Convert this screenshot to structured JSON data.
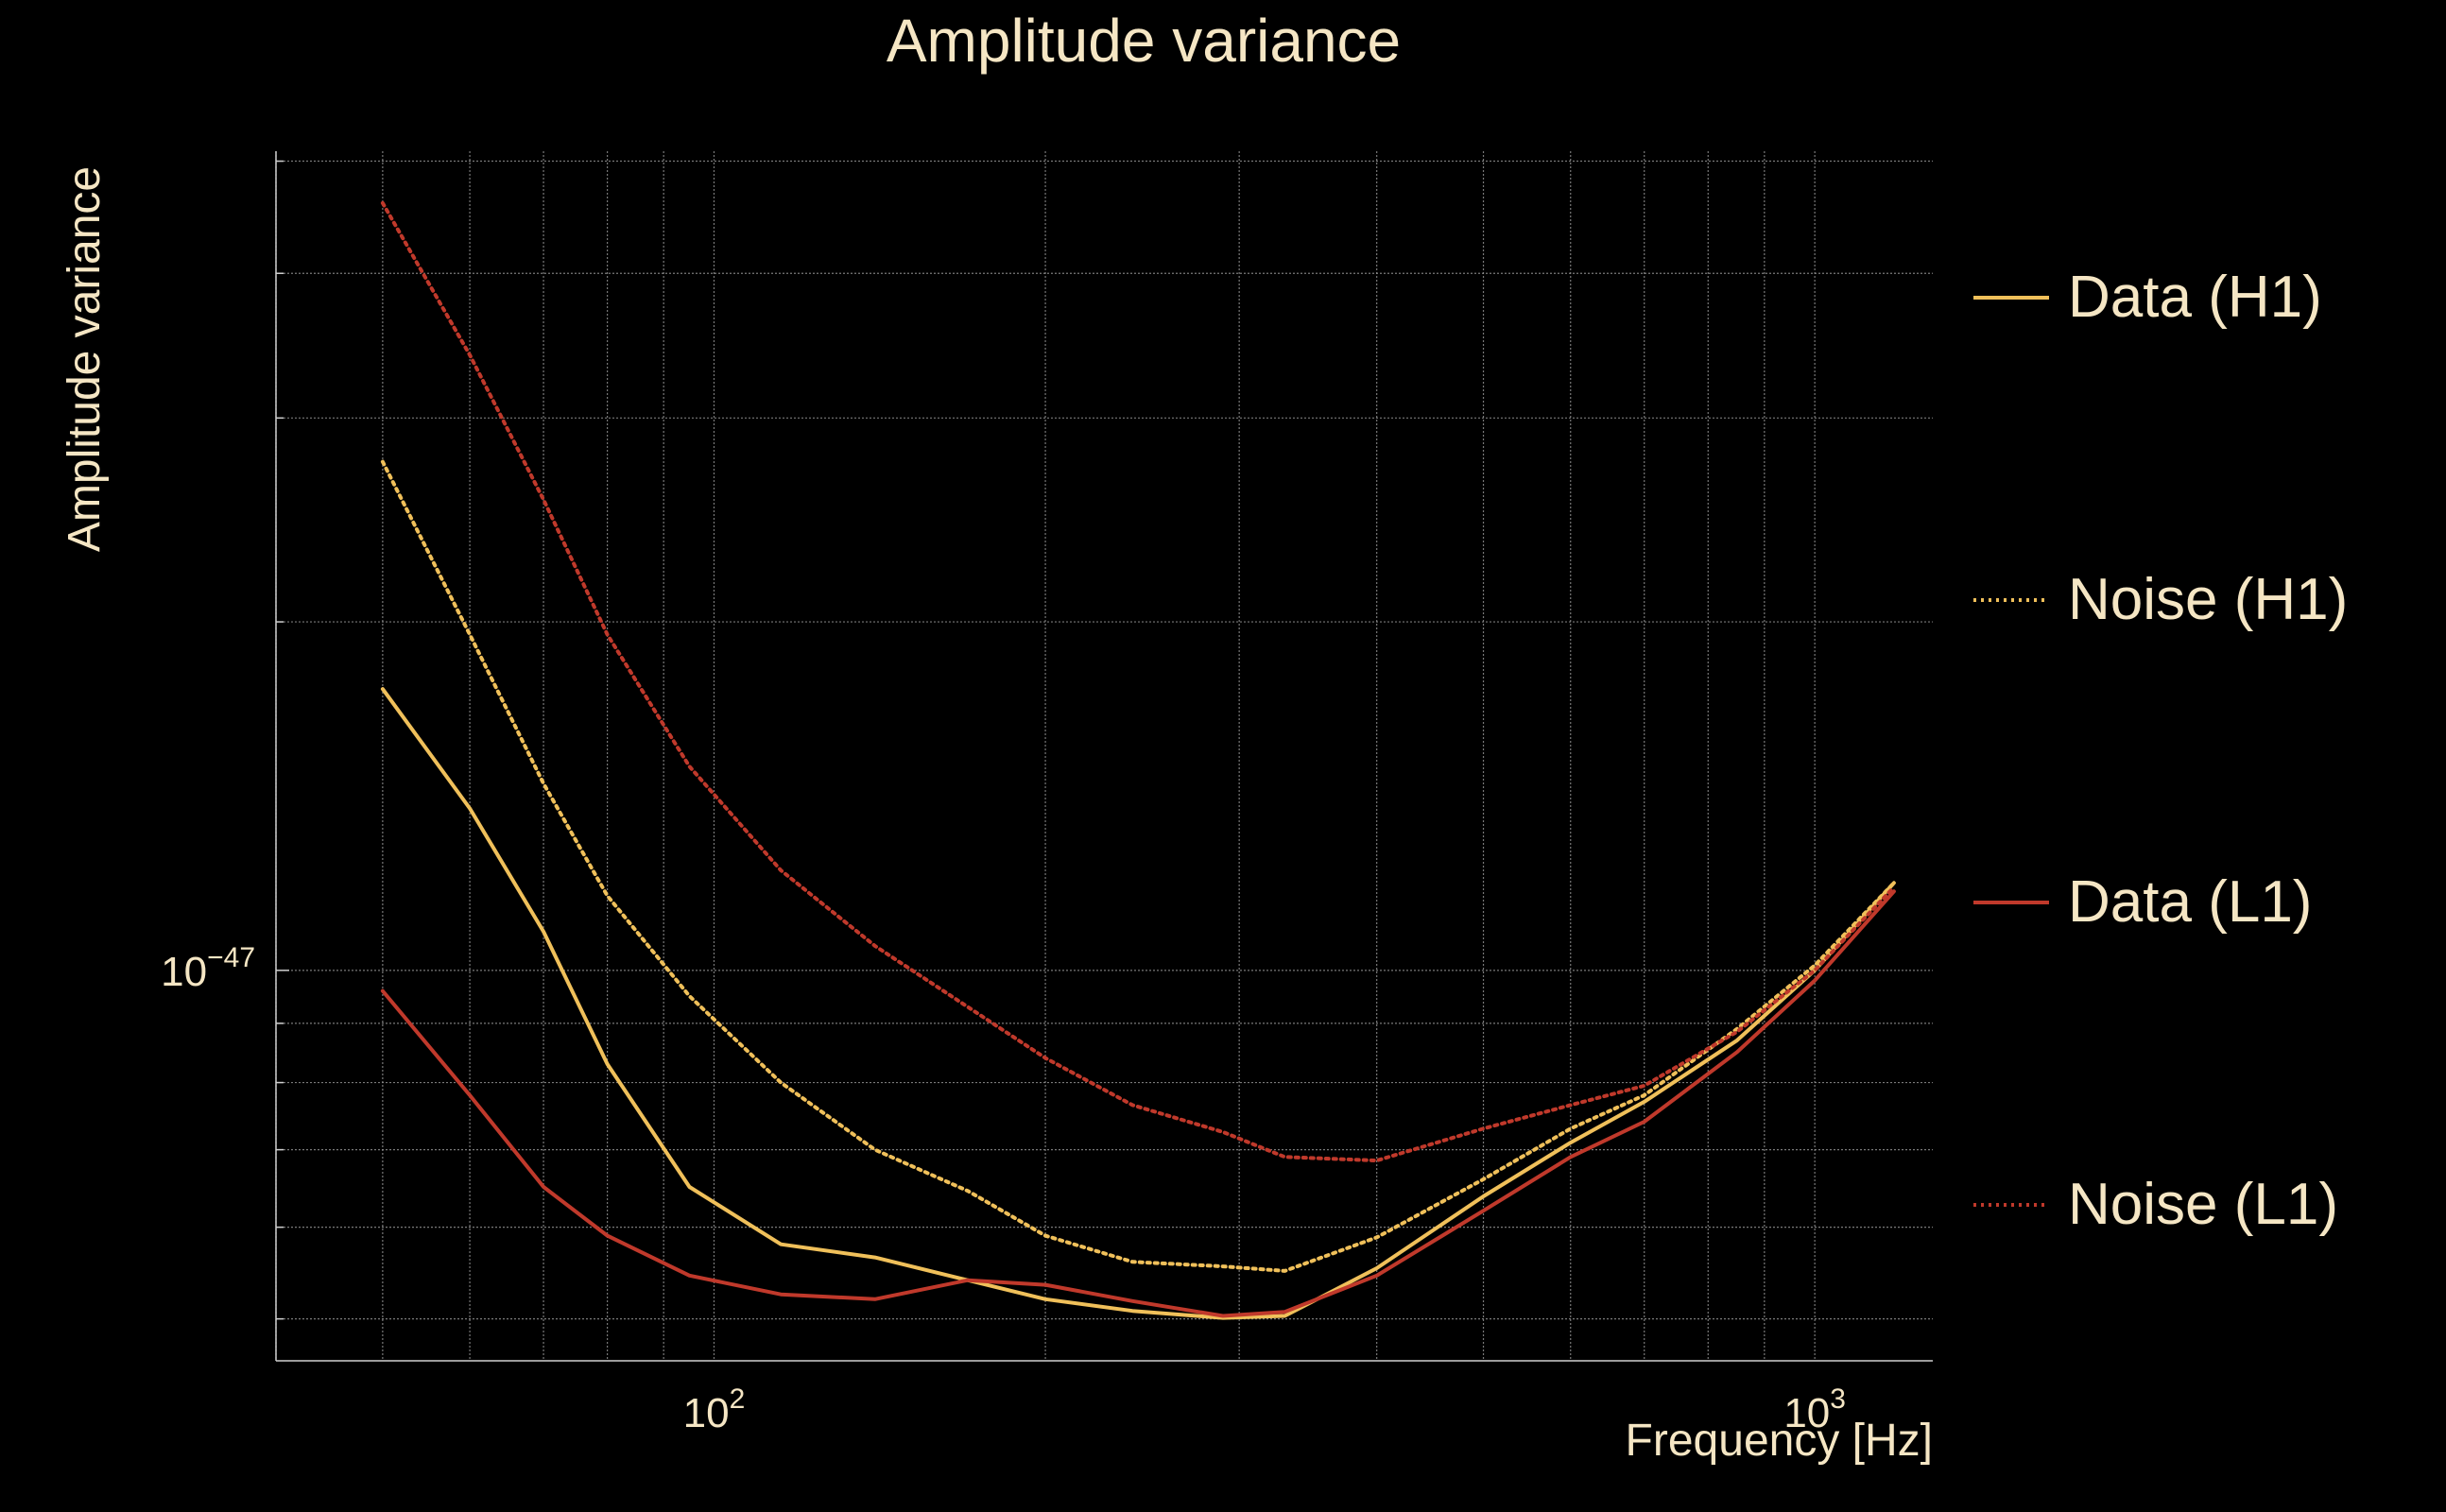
{
  "chart_data": {
    "type": "line",
    "title": "Amplitude variance",
    "xlabel": "Frequency [Hz]",
    "ylabel": "Amplitude variance",
    "x_scale": "log",
    "y_scale": "log",
    "xlim": [
      40,
      1280
    ],
    "ylim": [
      4.6e-48,
      5.1e-47
    ],
    "grid": true,
    "legend_position": "right",
    "x_ticks": [
      {
        "value": 100,
        "base": "10",
        "exp": "2"
      },
      {
        "value": 1000,
        "base": "10",
        "exp": "3"
      }
    ],
    "y_ticks": [
      {
        "value": 1e-47,
        "base": "10",
        "exp": "−47"
      }
    ],
    "x": [
      50,
      60,
      70,
      80,
      95,
      115,
      140,
      170,
      200,
      240,
      290,
      330,
      400,
      500,
      600,
      700,
      850,
      1000,
      1180
    ],
    "series": [
      {
        "name": "Data (H1)",
        "color": "#f0c05a",
        "dash": "solid",
        "values": [
          1.75e-47,
          1.38e-47,
          1.08e-47,
          8.3e-48,
          6.5e-48,
          5.8e-48,
          5.65e-48,
          5.4e-48,
          5.2e-48,
          5.08e-48,
          5.01e-48,
          5.03e-48,
          5.53e-48,
          6.38e-48,
          7.1e-48,
          7.7e-48,
          8.7e-48,
          1e-47,
          1.19e-47
        ]
      },
      {
        "name": "Noise (H1)",
        "color": "#f0c05a",
        "dash": "dotted",
        "values": [
          2.75e-47,
          1.95e-47,
          1.45e-47,
          1.16e-47,
          9.5e-48,
          8e-48,
          7e-48,
          6.45e-48,
          5.9e-48,
          5.6e-48,
          5.55e-48,
          5.5e-48,
          5.88e-48,
          6.6e-48,
          7.3e-48,
          7.8e-48,
          8.9e-48,
          1.01e-47,
          1.19e-47
        ]
      },
      {
        "name": "Data (L1)",
        "color": "#c0392b",
        "dash": "solid",
        "values": [
          9.6e-48,
          7.8e-48,
          6.5e-48,
          5.9e-48,
          5.45e-48,
          5.25e-48,
          5.2e-48,
          5.4e-48,
          5.35e-48,
          5.18e-48,
          5.03e-48,
          5.07e-48,
          5.45e-48,
          6.2e-48,
          6.9e-48,
          7.4e-48,
          8.5e-48,
          9.8e-48,
          1.17e-47
        ]
      },
      {
        "name": "Noise (L1)",
        "color": "#c0392b",
        "dash": "dotted",
        "values": [
          4.6e-47,
          3.4e-47,
          2.55e-47,
          1.95e-47,
          1.5e-47,
          1.22e-47,
          1.05e-47,
          9.3e-48,
          8.4e-48,
          7.65e-48,
          7.25e-48,
          6.9e-48,
          6.85e-48,
          7.3e-48,
          7.65e-48,
          7.95e-48,
          8.85e-48,
          1e-47,
          1.18e-47
        ]
      }
    ]
  }
}
